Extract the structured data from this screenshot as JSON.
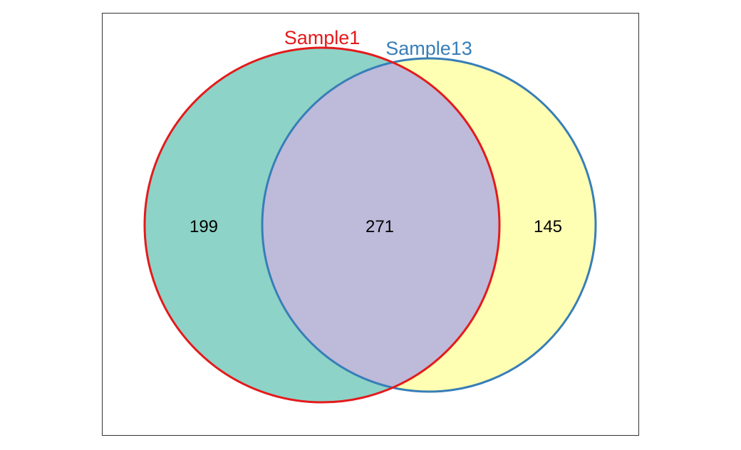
{
  "venn": {
    "sets": [
      {
        "name": "Sample1",
        "fill_color": "#8DD3C7",
        "stroke_color": "#E41A1C",
        "label_color": "#E41A1C"
      },
      {
        "name": "Sample13",
        "fill_color": "#FFFFB3",
        "stroke_color": "#377EB8",
        "label_color": "#377EB8"
      }
    ],
    "overlap_fill_color": "#BEBADA",
    "counts": {
      "only_sample1": "199",
      "both": "271",
      "only_sample13": "145"
    }
  }
}
